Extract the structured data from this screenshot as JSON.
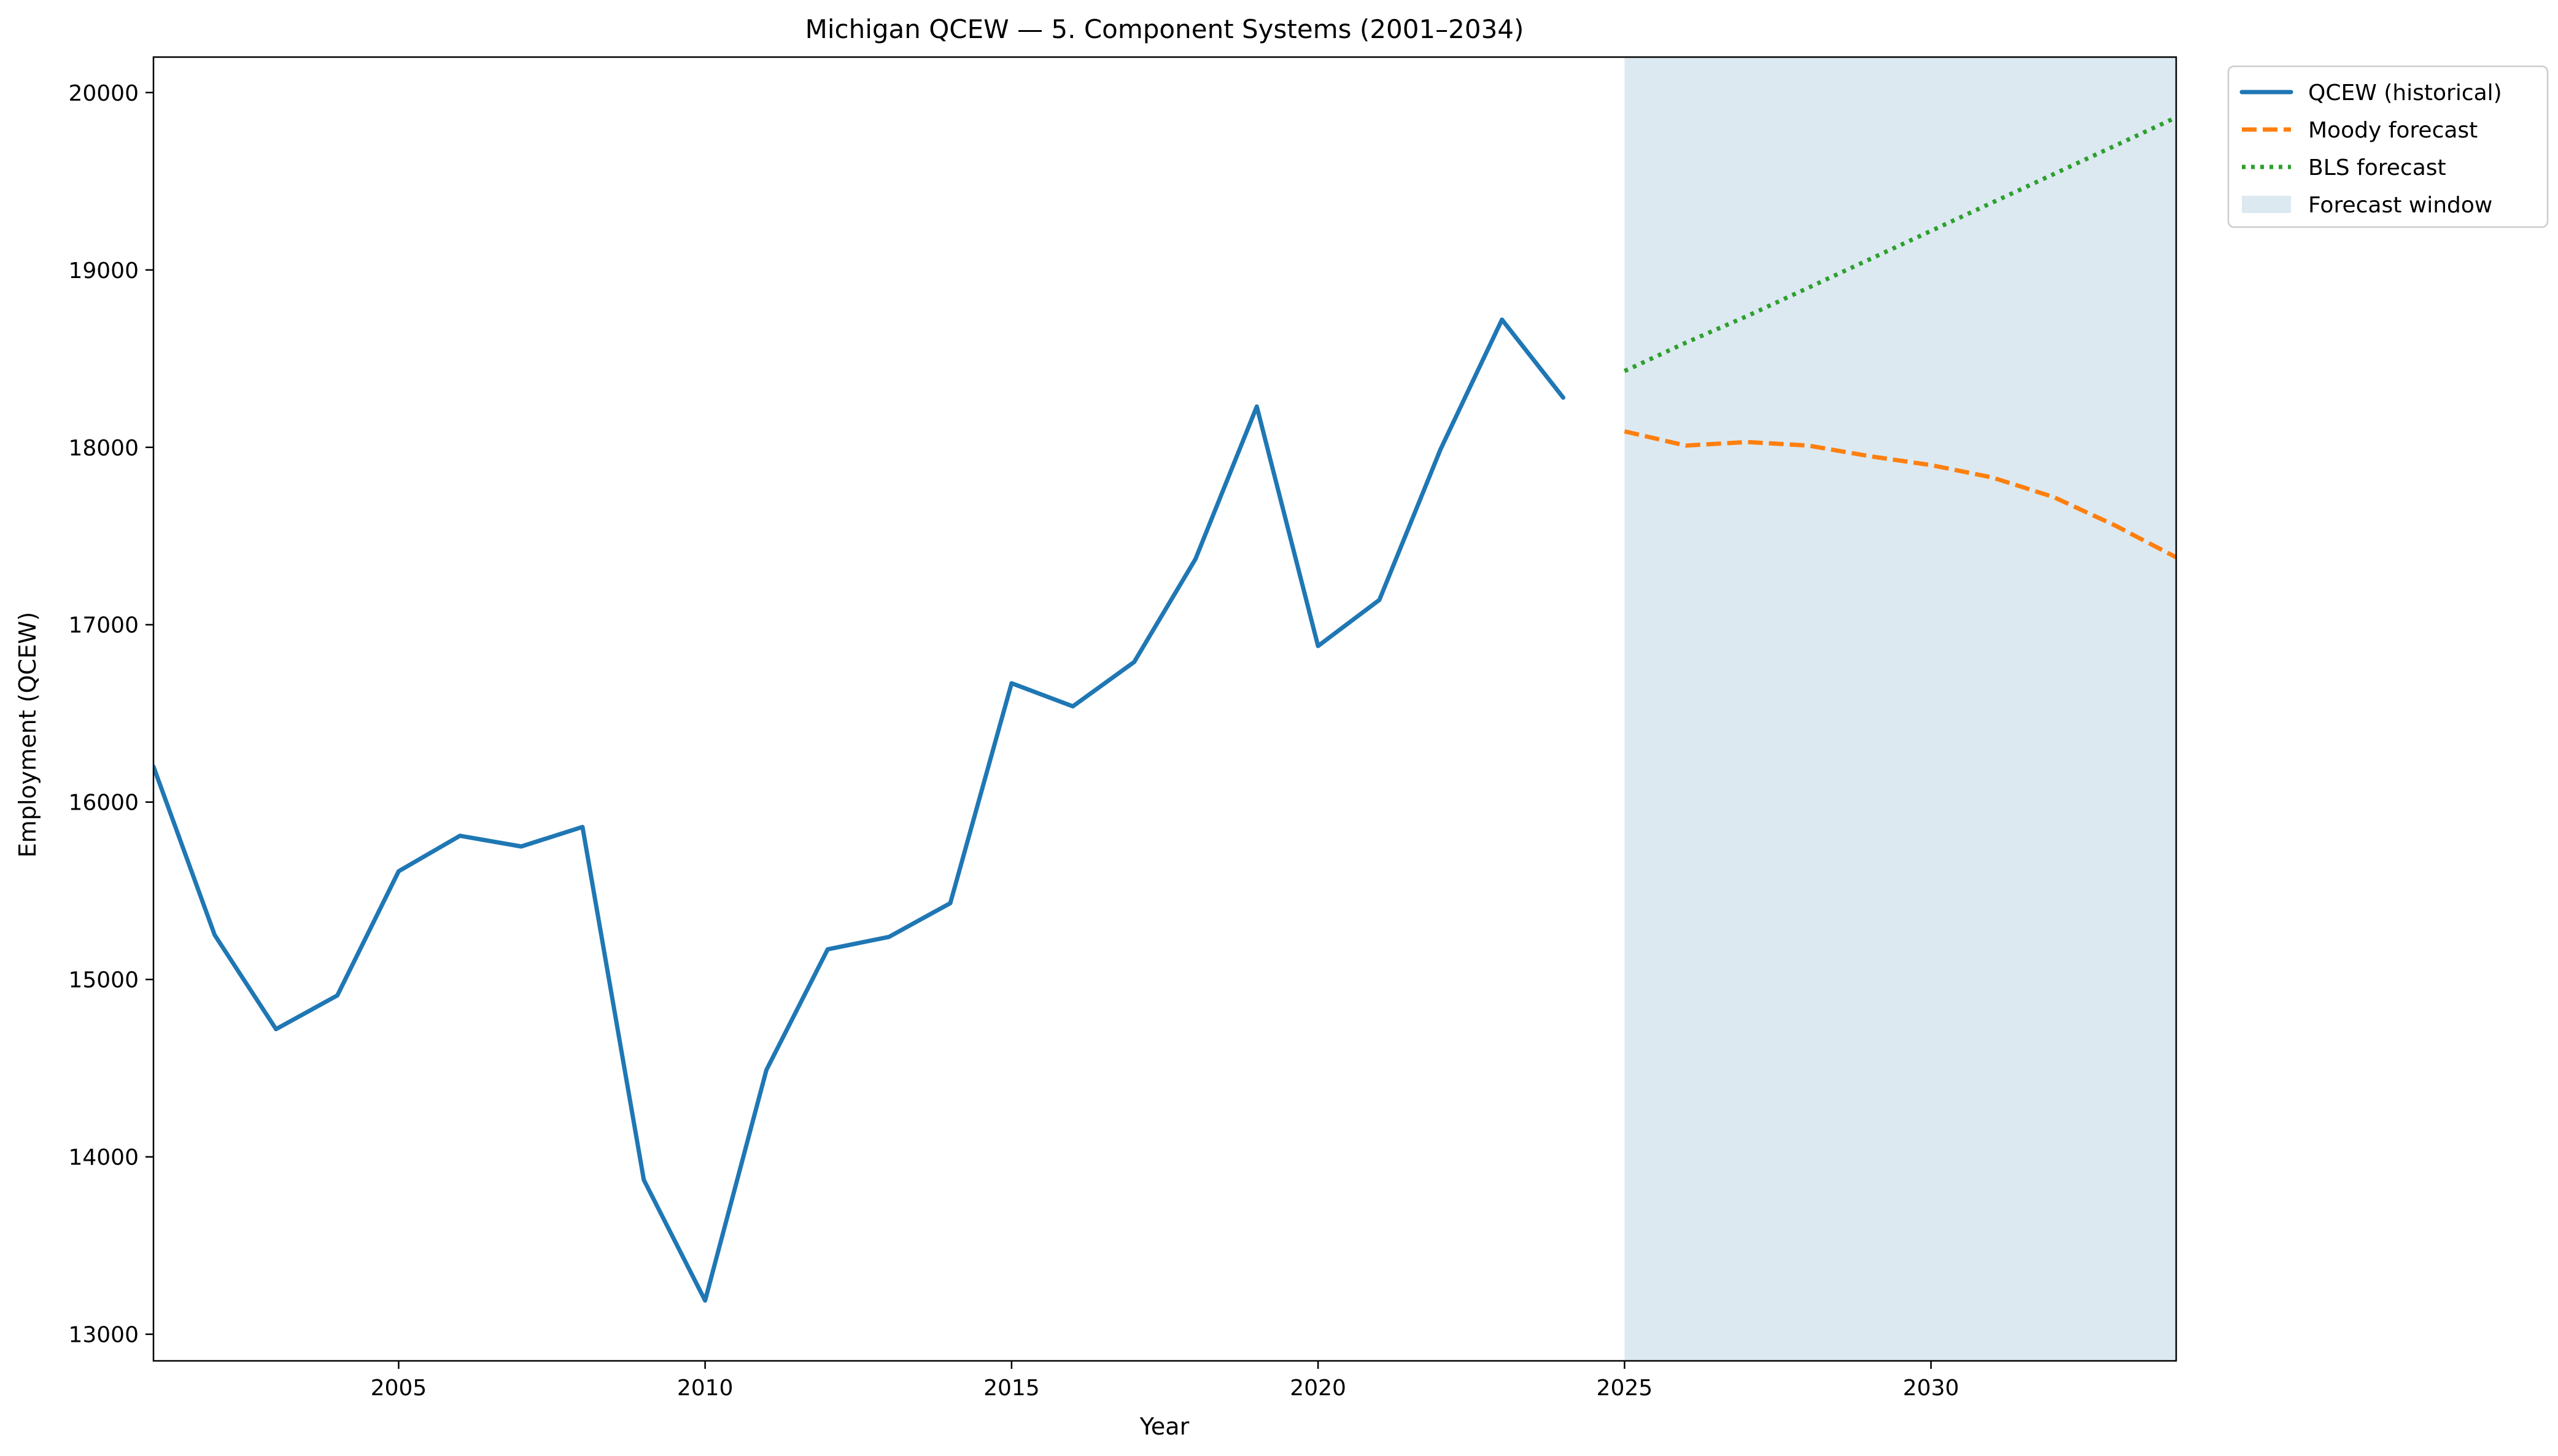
{
  "chart_data": {
    "type": "line",
    "title": "Michigan QCEW — 5. Component Systems (2001–2034)",
    "xlabel": "Year",
    "ylabel": "Employment (QCEW)",
    "xlim": [
      2001,
      2034
    ],
    "ylim": [
      12850,
      20200
    ],
    "xticks": [
      2005,
      2010,
      2015,
      2020,
      2025,
      2030
    ],
    "yticks": [
      13000,
      14000,
      15000,
      16000,
      17000,
      18000,
      19000,
      20000
    ],
    "grid": false,
    "legend_position": "outside-top-right",
    "forecast_window": {
      "label": "Forecast window",
      "start": 2025,
      "end": 2034,
      "color": "#dce9f1"
    },
    "series": [
      {
        "name": "QCEW (historical)",
        "style": "solid",
        "color": "#1f77b4",
        "x": [
          2001,
          2002,
          2003,
          2004,
          2005,
          2006,
          2007,
          2008,
          2009,
          2010,
          2011,
          2012,
          2013,
          2014,
          2015,
          2016,
          2017,
          2018,
          2019,
          2020,
          2021,
          2022,
          2023,
          2024
        ],
        "values": [
          16200,
          15250,
          14720,
          14910,
          15610,
          15810,
          15750,
          15860,
          13870,
          13190,
          14490,
          15170,
          15240,
          15430,
          16670,
          16540,
          16790,
          17370,
          18230,
          16880,
          17140,
          17990,
          18720,
          18280
        ]
      },
      {
        "name": "Moody forecast",
        "style": "dashed",
        "color": "#ff7f0e",
        "x": [
          2025,
          2026,
          2027,
          2028,
          2029,
          2030,
          2031,
          2032,
          2033,
          2034
        ],
        "values": [
          18090,
          18010,
          18030,
          18010,
          17950,
          17900,
          17830,
          17720,
          17560,
          17380
        ]
      },
      {
        "name": "BLS forecast",
        "style": "dotted",
        "color": "#2ca02c",
        "x": [
          2025,
          2026,
          2027,
          2028,
          2029,
          2030,
          2031,
          2032,
          2033,
          2034
        ],
        "values": [
          18430,
          18590,
          18740,
          18900,
          19060,
          19220,
          19380,
          19540,
          19700,
          19860
        ]
      }
    ]
  }
}
